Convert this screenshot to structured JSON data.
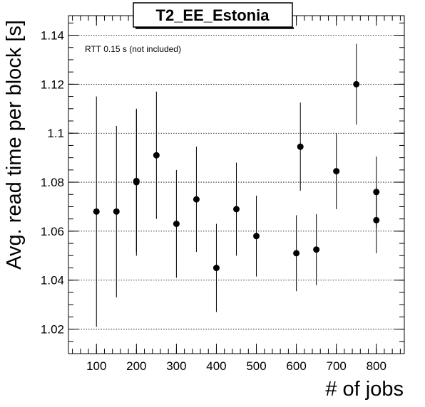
{
  "chart_data": {
    "type": "scatter",
    "title": "T2_EE_Estonia",
    "xlabel": "# of jobs",
    "ylabel": "Avg. read time per block [s]",
    "annotation": "RTT 0.15 s (not included)",
    "xlim": [
      30,
      870
    ],
    "ylim": [
      1.01,
      1.148
    ],
    "xticks": [
      100,
      200,
      300,
      400,
      500,
      600,
      700,
      800
    ],
    "xtick_labels": [
      "100",
      "200",
      "300",
      "400",
      "500",
      "600",
      "700",
      "800"
    ],
    "yticks": [
      1.02,
      1.04,
      1.06,
      1.08,
      1.1,
      1.12,
      1.14
    ],
    "ytick_labels": [
      "1.02",
      "1.04",
      "1.06",
      "1.08",
      "1.1",
      "1.12",
      "1.14"
    ],
    "grid": "horizontal",
    "points": [
      {
        "x": 100,
        "y": 1.068,
        "err": 0.047
      },
      {
        "x": 150,
        "y": 1.068,
        "err": 0.035
      },
      {
        "x": 200,
        "y": 1.0805,
        "err": 0.029
      },
      {
        "x": 200,
        "y": 1.08,
        "err": 0.03
      },
      {
        "x": 250,
        "y": 1.091,
        "err": 0.026
      },
      {
        "x": 300,
        "y": 1.063,
        "err": 0.022
      },
      {
        "x": 350,
        "y": 1.073,
        "err": 0.0215
      },
      {
        "x": 400,
        "y": 1.045,
        "err": 0.018
      },
      {
        "x": 450,
        "y": 1.069,
        "err": 0.019
      },
      {
        "x": 500,
        "y": 1.058,
        "err": 0.0165
      },
      {
        "x": 600,
        "y": 1.051,
        "err": 0.0155
      },
      {
        "x": 610,
        "y": 1.0945,
        "err": 0.018
      },
      {
        "x": 650,
        "y": 1.0525,
        "err": 0.0145
      },
      {
        "x": 700,
        "y": 1.0845,
        "err": 0.0155
      },
      {
        "x": 750,
        "y": 1.12,
        "err": 0.0165
      },
      {
        "x": 800,
        "y": 1.076,
        "err": 0.0145
      },
      {
        "x": 800,
        "y": 1.0645,
        "err": 0.0135
      }
    ]
  }
}
